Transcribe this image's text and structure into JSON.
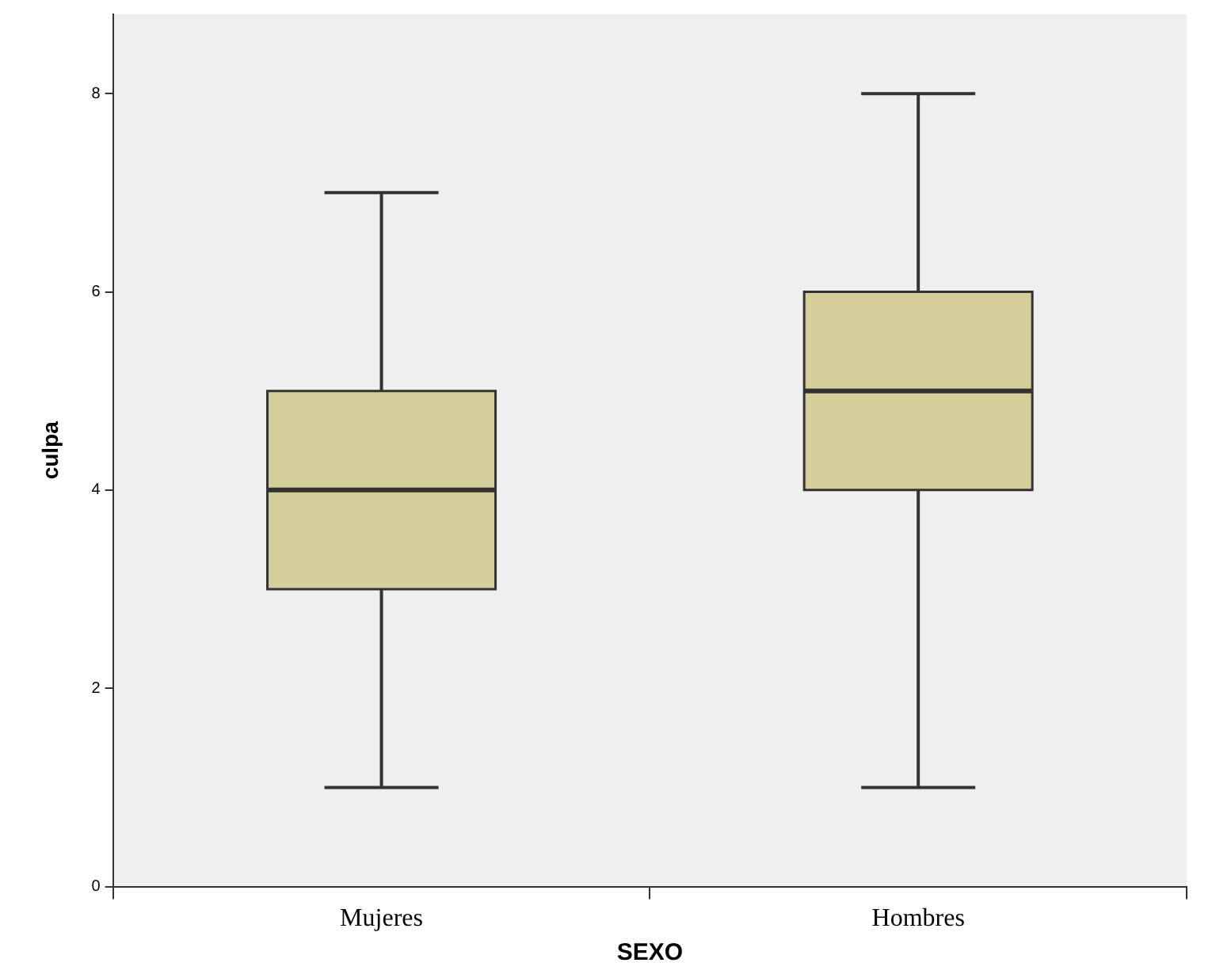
{
  "chart_data": {
    "type": "box",
    "xlabel": "SEXO",
    "ylabel": "culpa",
    "categories": [
      "Mujeres",
      "Hombres"
    ],
    "color": "#d4cf9a",
    "boxes": [
      {
        "low": 1,
        "q1": 3,
        "median": 4,
        "q3": 5,
        "high": 7
      },
      {
        "low": 1,
        "q1": 4,
        "median": 5,
        "q3": 6,
        "high": 8
      }
    ],
    "ylim": [
      0,
      8.8
    ],
    "yticks": [
      0,
      2,
      4,
      6,
      8
    ],
    "grid": false,
    "legend": false
  }
}
